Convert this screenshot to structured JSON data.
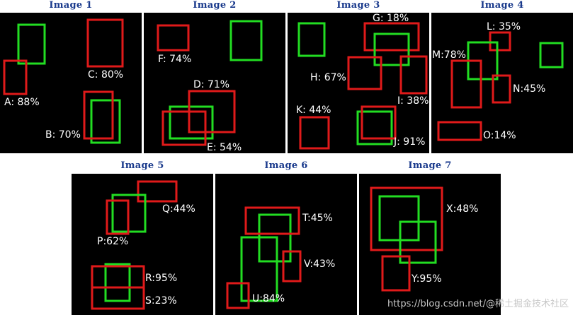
{
  "colors": {
    "prediction": "#e01a1a",
    "ground_truth": "#22dd22",
    "title": "#1a3a8c"
  },
  "panels": [
    {
      "title": "Image 1",
      "labels": [
        {
          "id": "A",
          "text": "A: 88%"
        },
        {
          "id": "B",
          "text": "B: 70%"
        },
        {
          "id": "C",
          "text": "C: 80%"
        }
      ]
    },
    {
      "title": "Image 2",
      "labels": [
        {
          "id": "D",
          "text": "D: 71%"
        },
        {
          "id": "E",
          "text": "E: 54%"
        },
        {
          "id": "F",
          "text": "F: 74%"
        }
      ]
    },
    {
      "title": "Image 3",
      "labels": [
        {
          "id": "G",
          "text": "G: 18%"
        },
        {
          "id": "H",
          "text": "H: 67%"
        },
        {
          "id": "I",
          "text": "I: 38%"
        },
        {
          "id": "J",
          "text": "J: 91%"
        },
        {
          "id": "K",
          "text": "K: 44%"
        }
      ]
    },
    {
      "title": "Image 4",
      "labels": [
        {
          "id": "L",
          "text": "L: 35%"
        },
        {
          "id": "M",
          "text": "M:78%"
        },
        {
          "id": "N",
          "text": "N:45%"
        },
        {
          "id": "O",
          "text": "O:14%"
        }
      ]
    },
    {
      "title": "Image 5",
      "labels": [
        {
          "id": "P",
          "text": "P:62%"
        },
        {
          "id": "Q",
          "text": "Q:44%"
        },
        {
          "id": "R",
          "text": "R:95%"
        },
        {
          "id": "S",
          "text": "S:23%"
        }
      ]
    },
    {
      "title": "Image 6",
      "labels": [
        {
          "id": "T",
          "text": "T:45%"
        },
        {
          "id": "U",
          "text": "U:84%"
        },
        {
          "id": "V",
          "text": "V:43%"
        }
      ]
    },
    {
      "title": "Image 7",
      "labels": [
        {
          "id": "X",
          "text": "X:48%"
        },
        {
          "id": "Y",
          "text": "Y:95%"
        }
      ]
    }
  ],
  "watermark": "https://blog.csdn.net/@稀土掘金技术社区"
}
